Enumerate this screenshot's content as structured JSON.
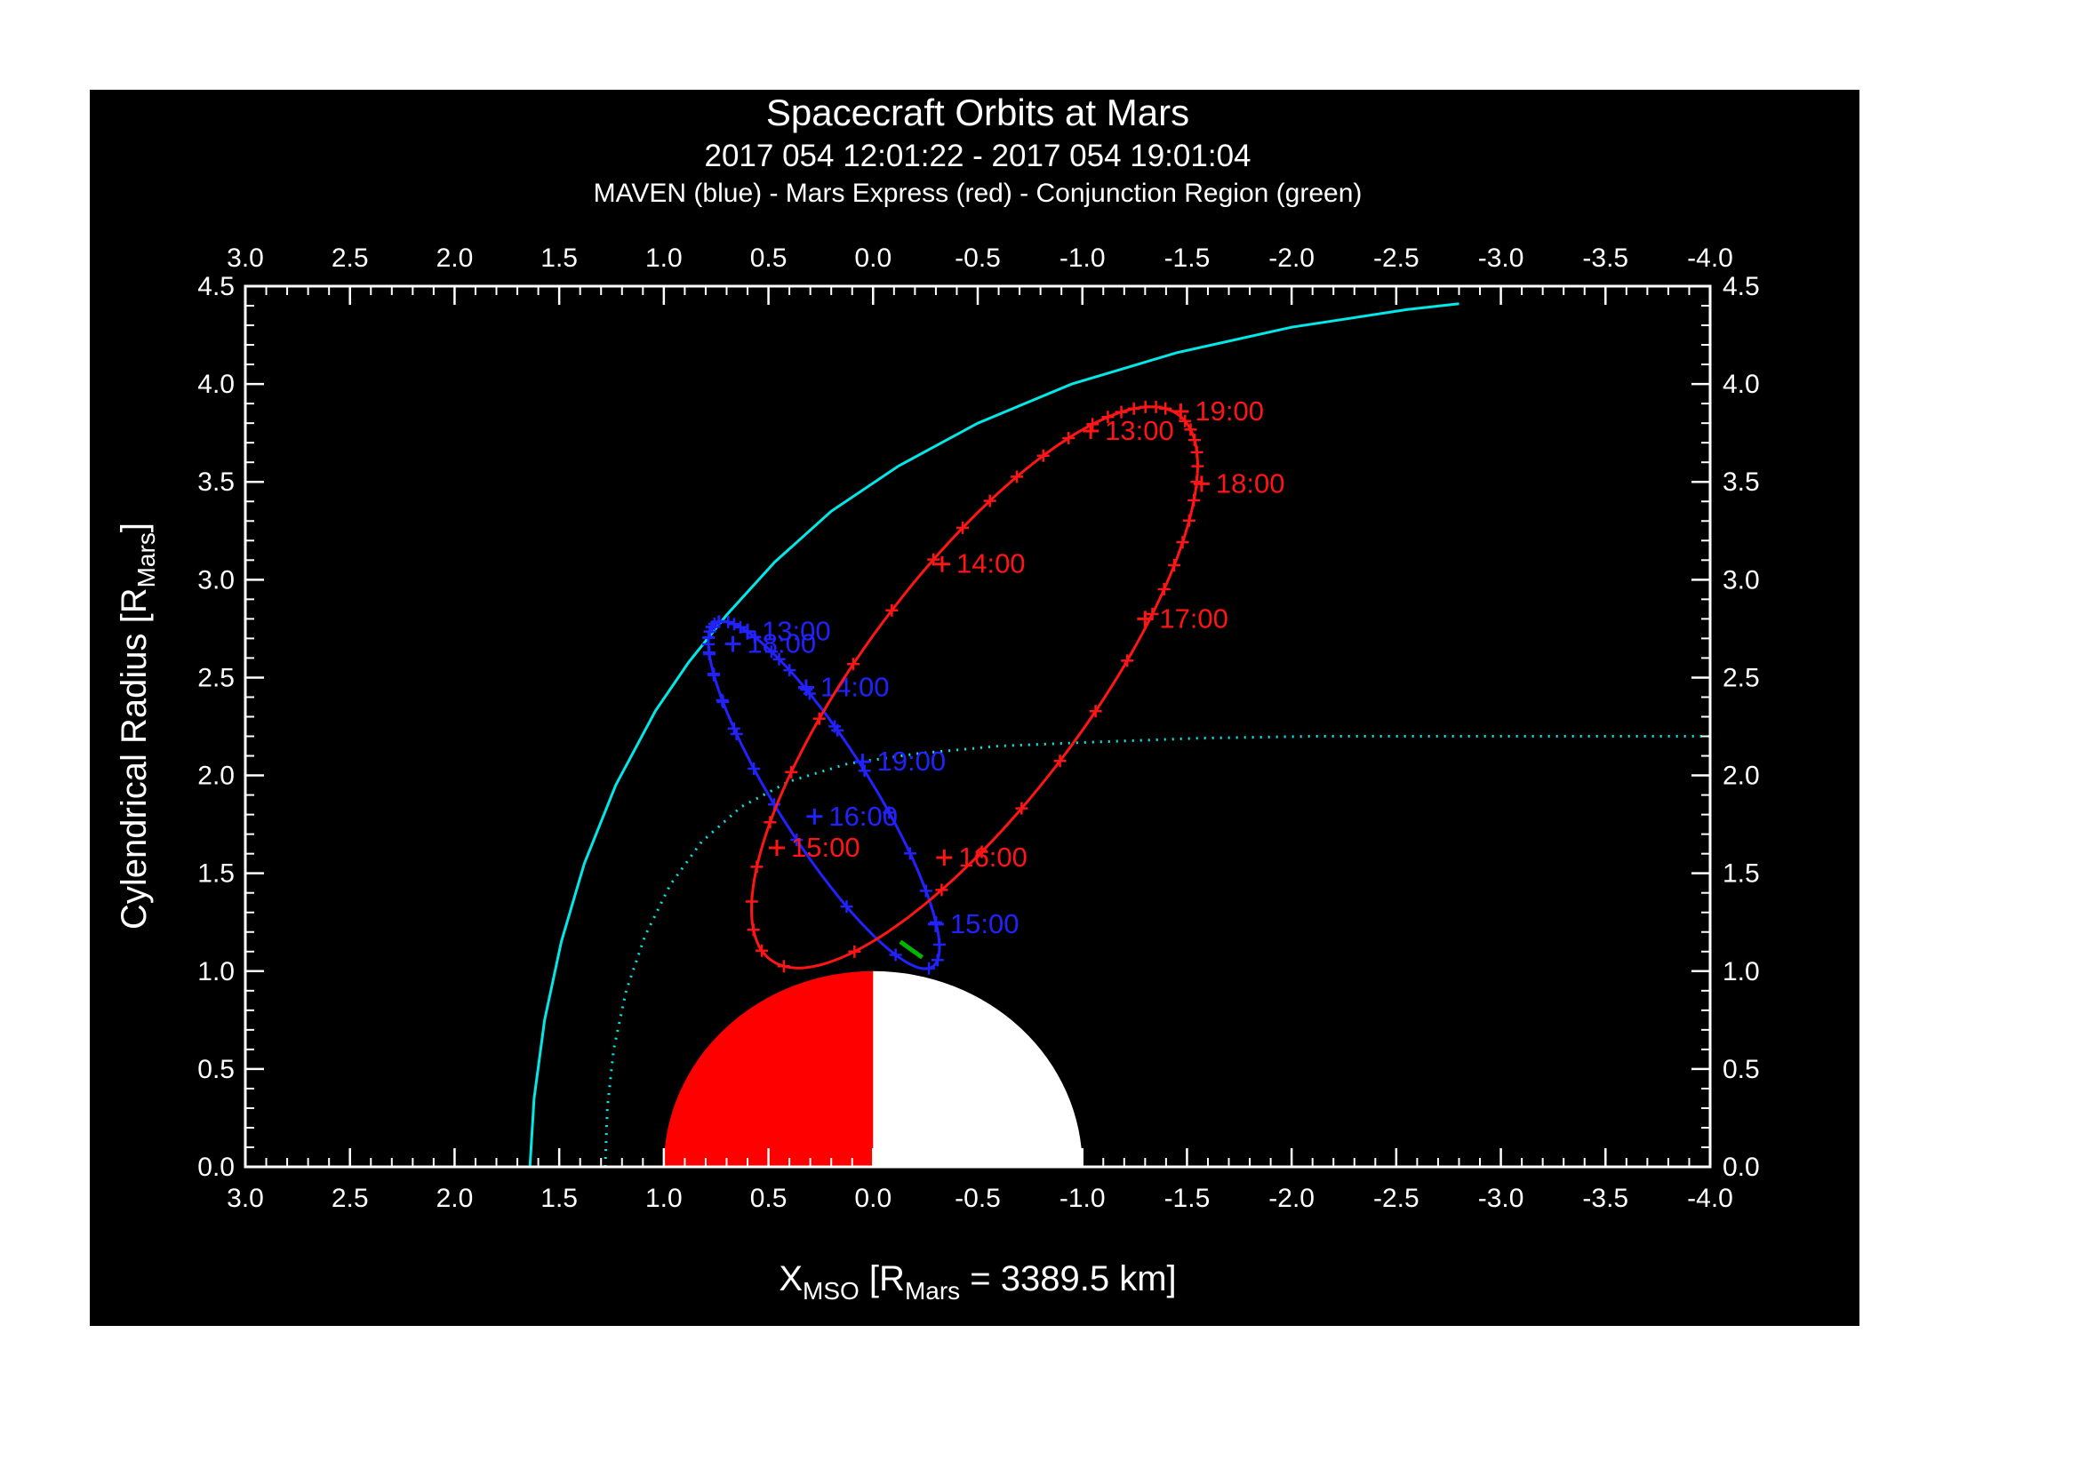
{
  "figure": {
    "title": "Spacecraft Orbits at Mars",
    "subtitle": "2017 054 12:01:22 - 2017 054 19:01:04",
    "legend": "MAVEN (blue) - Mars Express (red) - Conjunction Region (green)"
  },
  "chart_data": {
    "type": "line",
    "title": "Spacecraft Orbits at Mars",
    "time_range": "2017 054 12:01:22 - 2017 054 19:01:04",
    "legend": "MAVEN (blue) - Mars Express (red) - Conjunction Region (green)",
    "colors": {
      "page_bg": "#ffffff",
      "figure_bg": "#000000",
      "axis": "#ffffff",
      "boundary": "#00e8e8",
      "maven": "#2222ff",
      "mars_express": "#ff1515",
      "conjunction": "#00b400",
      "mars_dayside": "#ff0000",
      "mars_nightside": "#ffffff"
    },
    "x_axis": {
      "range": [
        3.0,
        -4.0
      ],
      "minor_step": 0.1,
      "major_step": 0.5,
      "tick_values": [
        3.0,
        2.5,
        2.0,
        1.5,
        1.0,
        0.5,
        0.0,
        -0.5,
        -1.0,
        -1.5,
        -2.0,
        -2.5,
        -3.0,
        -3.5,
        -4.0
      ],
      "tick_labels": [
        "3.0",
        "2.5",
        "2.0",
        "1.5",
        "1.0",
        "0.5",
        "0.0",
        "-0.5",
        "-1.0",
        "-1.5",
        "-2.0",
        "-2.5",
        "-3.0",
        "-3.5",
        "-4.0"
      ],
      "label_parts": [
        {
          "text": "X"
        },
        {
          "text": "MSO",
          "sub": true
        },
        {
          "text": " [R"
        },
        {
          "text": "Mars",
          "sub": true
        },
        {
          "text": " = 3389.5 km]"
        }
      ]
    },
    "y_axis": {
      "range": [
        0.0,
        4.5
      ],
      "minor_step": 0.1,
      "major_step": 0.5,
      "tick_values": [
        0.0,
        0.5,
        1.0,
        1.5,
        2.0,
        2.5,
        3.0,
        3.5,
        4.0,
        4.5
      ],
      "tick_labels": [
        "0.0",
        "0.5",
        "1.0",
        "1.5",
        "2.0",
        "2.5",
        "3.0",
        "3.5",
        "4.0",
        "4.5"
      ],
      "label_parts": [
        {
          "text": "Cylendrical Radius [R"
        },
        {
          "text": "Mars",
          "sub": true
        },
        {
          "text": "]"
        }
      ]
    },
    "mars": {
      "radius": 1.0
    },
    "bow_shock": {
      "name": "bow-shock",
      "style": "solid",
      "points": [
        [
          1.64,
          0.0
        ],
        [
          1.62,
          0.35
        ],
        [
          1.57,
          0.75
        ],
        [
          1.49,
          1.15
        ],
        [
          1.38,
          1.55
        ],
        [
          1.23,
          1.95
        ],
        [
          1.04,
          2.33
        ],
        [
          0.88,
          2.58
        ],
        [
          0.7,
          2.82
        ],
        [
          0.47,
          3.09
        ],
        [
          0.2,
          3.35
        ],
        [
          -0.12,
          3.58
        ],
        [
          -0.5,
          3.8
        ],
        [
          -0.95,
          4.0
        ],
        [
          -1.45,
          4.16
        ],
        [
          -2.0,
          4.29
        ],
        [
          -2.55,
          4.38
        ],
        [
          -2.8,
          4.41
        ]
      ]
    },
    "mpb": {
      "name": "magnetic-pileup-boundary",
      "style": "dotted",
      "points": [
        [
          1.28,
          0.0
        ],
        [
          1.27,
          0.3
        ],
        [
          1.24,
          0.6
        ],
        [
          1.18,
          0.9
        ],
        [
          1.09,
          1.18
        ],
        [
          0.97,
          1.44
        ],
        [
          0.82,
          1.66
        ],
        [
          0.63,
          1.84
        ],
        [
          0.4,
          1.97
        ],
        [
          0.12,
          2.06
        ],
        [
          -0.2,
          2.11
        ],
        [
          -0.6,
          2.15
        ],
        [
          -1.05,
          2.17
        ],
        [
          -1.55,
          2.19
        ],
        [
          -2.1,
          2.2
        ],
        [
          -2.75,
          2.2
        ],
        [
          -3.4,
          2.2
        ],
        [
          -4.0,
          2.2
        ]
      ]
    },
    "orbits": [
      {
        "name": "MAVEN",
        "color_key": "maven",
        "center": [
          0.235,
          1.9
        ],
        "a": 1.02,
        "b": 0.23,
        "u": [
          -0.505,
          -0.863
        ],
        "w": [
          0.863,
          -0.505
        ],
        "t_start": 12.022,
        "t_end": 19.018,
        "marker_step": 0.16667,
        "anchors": [
          [
            12.022,
            120
          ],
          [
            13.0,
            182
          ],
          [
            14.0,
            240
          ],
          [
            15.0,
            323
          ],
          [
            15.5,
            360
          ],
          [
            16.0,
            441
          ],
          [
            17.0,
            512
          ],
          [
            18.0,
            542
          ],
          [
            19.018,
            628
          ]
        ],
        "time_labels": [
          {
            "text": "13:00",
            "x": 0.6,
            "y": 2.735
          },
          {
            "text": "18:00",
            "x": 0.67,
            "y": 2.672
          },
          {
            "text": "14:00",
            "x": 0.32,
            "y": 2.45
          },
          {
            "text": "19:00",
            "x": 0.05,
            "y": 2.07
          },
          {
            "text": "16:00",
            "x": 0.28,
            "y": 1.79
          },
          {
            "text": "15:00",
            "x": -0.3,
            "y": 1.24
          }
        ]
      },
      {
        "name": "Mars Express",
        "color_key": "mars_express",
        "center": [
          -0.485,
          2.45
        ],
        "a": 1.7,
        "b": 0.55,
        "u": [
          0.5676,
          -0.8233
        ],
        "w": [
          -0.8233,
          -0.5676
        ],
        "t_start": 12.022,
        "t_end": 19.018,
        "marker_step": 0.16667,
        "anchors": [
          [
            12.022,
            186
          ],
          [
            13.0,
            212
          ],
          [
            14.0,
            254
          ],
          [
            15.0,
            321
          ],
          [
            15.65,
            360
          ],
          [
            16.0,
            415
          ],
          [
            17.0,
            477
          ],
          [
            18.0,
            509
          ],
          [
            19.018,
            539
          ]
        ],
        "time_labels": [
          {
            "text": "19:00",
            "x": -1.47,
            "y": 3.86
          },
          {
            "text": "13:00",
            "x": -1.04,
            "y": 3.76
          },
          {
            "text": "18:00",
            "x": -1.57,
            "y": 3.49
          },
          {
            "text": "17:00",
            "x": -1.3,
            "y": 2.8
          },
          {
            "text": "14:00",
            "x": -0.33,
            "y": 3.08
          },
          {
            "text": "16:00",
            "x": -0.34,
            "y": 1.58
          },
          {
            "text": "15:00",
            "x": 0.46,
            "y": 1.63
          }
        ]
      }
    ],
    "conjunction_region": {
      "points": [
        [
          -0.13,
          1.15
        ],
        [
          -0.235,
          1.07
        ]
      ]
    }
  }
}
